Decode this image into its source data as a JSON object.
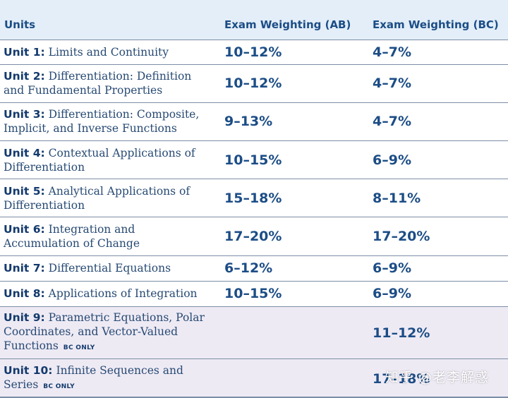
{
  "header": {
    "col_units": "Units",
    "col_ab": "Exam Weighting (AB)",
    "col_bc": "Exam Weighting (BC)"
  },
  "rows": [
    {
      "unit": "Unit 1:",
      "title_lines": [
        "Limits and Continuity"
      ],
      "bc_only": "",
      "ab": "10–12%",
      "bc": "4–7%"
    },
    {
      "unit": "Unit 2:",
      "title_lines": [
        "Differentiation: Definition",
        "and Fundamental Properties"
      ],
      "bc_only": "",
      "ab": "10–12%",
      "bc": "4–7%"
    },
    {
      "unit": "Unit 3:",
      "title_lines": [
        "Differentiation: Composite,",
        "Implicit, and Inverse Functions"
      ],
      "bc_only": "",
      "ab": "9–13%",
      "bc": "4–7%"
    },
    {
      "unit": "Unit 4:",
      "title_lines": [
        "Contextual Applications of",
        "Differentiation"
      ],
      "bc_only": "",
      "ab": "10–15%",
      "bc": "6–9%"
    },
    {
      "unit": "Unit 5:",
      "title_lines": [
        "Analytical Applications of",
        "Differentiation"
      ],
      "bc_only": "",
      "ab": "15–18%",
      "bc": "8–11%"
    },
    {
      "unit": "Unit 6:",
      "title_lines": [
        "Integration and",
        "Accumulation of Change"
      ],
      "bc_only": "",
      "ab": "17–20%",
      "bc": "17–20%"
    },
    {
      "unit": "Unit 7:",
      "title_lines": [
        "Differential Equations"
      ],
      "bc_only": "",
      "ab": "6–12%",
      "bc": "6–9%"
    },
    {
      "unit": "Unit 8:",
      "title_lines": [
        "Applications of Integration"
      ],
      "bc_only": "",
      "ab": "10–15%",
      "bc": "6–9%"
    },
    {
      "unit": "Unit 9:",
      "title_lines": [
        "Parametric Equations, Polar",
        "Coordinates, and Vector-Valued",
        "Functions"
      ],
      "bc_only": "BC ONLY",
      "ab": "",
      "bc": "11–12%"
    },
    {
      "unit": "Unit 10:",
      "title_lines": [
        "Infinite Sequences and",
        "Series"
      ],
      "bc_only": "BC ONLY",
      "ab": "",
      "bc": "17–18%"
    }
  ],
  "watermark": "知乎 @老李解惑",
  "colors": {
    "header_bg": "#e3eef8",
    "bc_only_row_bg": "#eeeaf4",
    "text_blue": "#1c4d86"
  }
}
